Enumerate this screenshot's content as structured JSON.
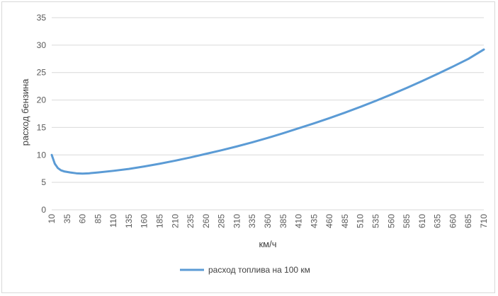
{
  "chart_data": {
    "type": "line",
    "title": "",
    "xlabel": "км/ч",
    "ylabel": "расход бензина",
    "x_ticks": [
      "10",
      "35",
      "60",
      "85",
      "110",
      "135",
      "160",
      "185",
      "210",
      "235",
      "260",
      "285",
      "310",
      "335",
      "360",
      "385",
      "410",
      "435",
      "460",
      "485",
      "510",
      "535",
      "560",
      "585",
      "610",
      "635",
      "660",
      "685",
      "710"
    ],
    "ylim": [
      0,
      35
    ],
    "y_ticks": [
      0,
      5,
      10,
      15,
      20,
      25,
      30,
      35
    ],
    "grid": true,
    "legend_position": "bottom",
    "series": [
      {
        "name": "расход топлива на 100 км",
        "color": "#5b9bd5",
        "x": [
          10,
          15,
          20,
          25,
          30,
          35,
          40,
          50,
          60,
          70,
          85,
          110,
          135,
          160,
          185,
          210,
          235,
          260,
          285,
          310,
          335,
          360,
          385,
          410,
          435,
          460,
          485,
          510,
          535,
          560,
          585,
          610,
          635,
          660,
          685,
          710
        ],
        "y": [
          10.0,
          8.4,
          7.6,
          7.2,
          7.0,
          6.9,
          6.8,
          6.65,
          6.6,
          6.65,
          6.8,
          7.1,
          7.45,
          7.9,
          8.4,
          8.95,
          9.55,
          10.2,
          10.85,
          11.55,
          12.3,
          13.1,
          13.95,
          14.85,
          15.75,
          16.7,
          17.7,
          18.75,
          19.85,
          21.0,
          22.2,
          23.45,
          24.75,
          26.1,
          27.5,
          29.2
        ]
      }
    ]
  }
}
